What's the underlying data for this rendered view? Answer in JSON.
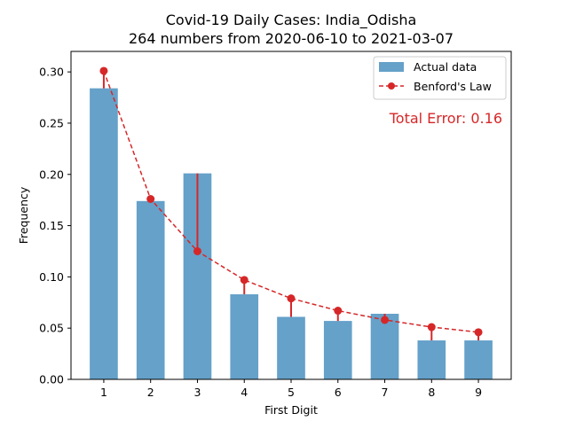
{
  "chart_data": {
    "type": "bar",
    "title_line1": "Covid-19 Daily Cases: India_Odisha",
    "title_line2": "264 numbers from 2020-06-10 to 2021-03-07",
    "xlabel": "First Digit",
    "ylabel": "Frequency",
    "categories": [
      "1",
      "2",
      "3",
      "4",
      "5",
      "6",
      "7",
      "8",
      "9"
    ],
    "x": [
      1,
      2,
      3,
      4,
      5,
      6,
      7,
      8,
      9
    ],
    "ylim": [
      0,
      0.32
    ],
    "yticks": [
      0.0,
      0.05,
      0.1,
      0.15,
      0.2,
      0.25,
      0.3
    ],
    "ytick_labels": [
      "0.00",
      "0.05",
      "0.10",
      "0.15",
      "0.20",
      "0.25",
      "0.30"
    ],
    "grid": false,
    "legend_position": "top-right",
    "series": [
      {
        "name": "Actual data",
        "kind": "bar",
        "color": "#65a1c9",
        "values": [
          0.284,
          0.174,
          0.201,
          0.083,
          0.061,
          0.057,
          0.064,
          0.038,
          0.038
        ]
      },
      {
        "name": "Benford's Law",
        "kind": "line",
        "style": "dashed",
        "color": "#d62728",
        "values": [
          0.301,
          0.176,
          0.125,
          0.097,
          0.079,
          0.067,
          0.058,
          0.051,
          0.046
        ]
      }
    ],
    "annotation": "Total Error: 0.16",
    "annotation_color": "#d62728"
  }
}
